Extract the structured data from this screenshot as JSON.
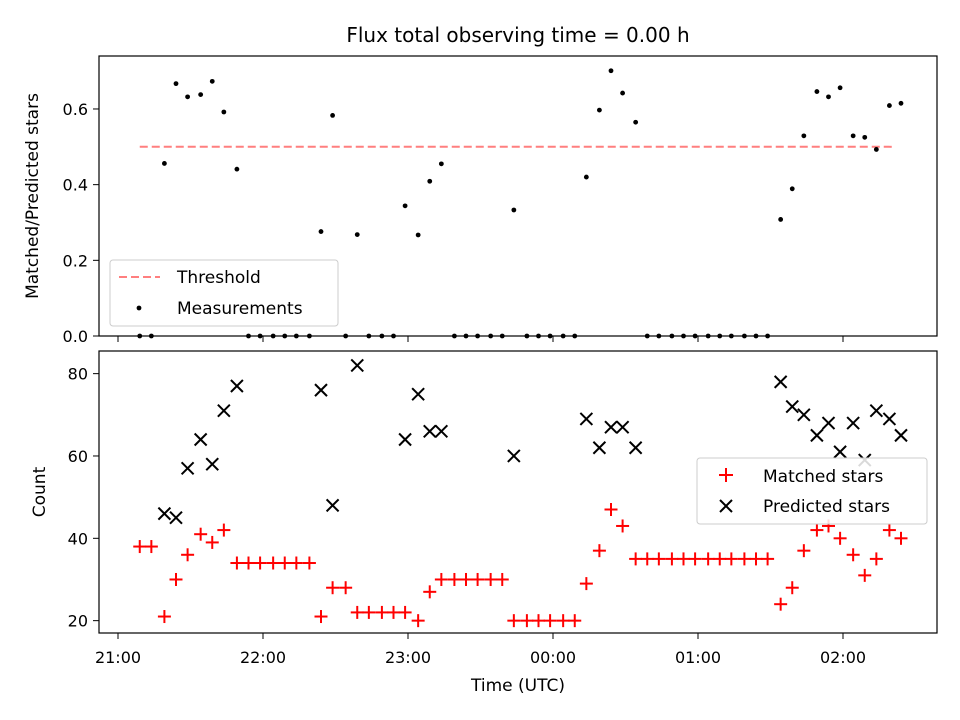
{
  "chart_data": [
    {
      "type": "scatter",
      "title": "Flux total observing time = 0.00 h",
      "ylabel": "Matched/Predicted stars",
      "ylim": [
        0,
        0.74
      ],
      "yticks": [
        0.0,
        0.2,
        0.4,
        0.6
      ],
      "ytick_labels": [
        "0.0",
        "0.2",
        "0.4",
        "0.6"
      ],
      "legend": {
        "placement": "lower-left",
        "entries": [
          "Threshold",
          "Measurements"
        ]
      },
      "threshold": {
        "name": "Threshold",
        "value": 0.5,
        "x_range": [
          21.15,
          2.35
        ],
        "color": "#ff7f7f"
      },
      "series": [
        {
          "name": "Measurements",
          "color": "#000000",
          "points": [
            [
              21.15,
              0.0
            ],
            [
              21.23,
              0.0
            ],
            [
              21.32,
              0.456
            ],
            [
              21.4,
              0.667
            ],
            [
              21.48,
              0.632
            ],
            [
              21.57,
              0.638
            ],
            [
              21.65,
              0.673
            ],
            [
              21.73,
              0.592
            ],
            [
              21.82,
              0.441
            ],
            [
              21.9,
              0.0
            ],
            [
              21.98,
              0.0
            ],
            [
              22.07,
              0.0
            ],
            [
              22.15,
              0.0
            ],
            [
              22.23,
              0.0
            ],
            [
              22.32,
              0.0
            ],
            [
              22.4,
              0.276
            ],
            [
              22.48,
              0.583
            ],
            [
              22.57,
              0.0
            ],
            [
              22.65,
              0.268
            ],
            [
              22.73,
              0.0
            ],
            [
              22.82,
              0.0
            ],
            [
              22.9,
              0.0
            ],
            [
              22.98,
              0.344
            ],
            [
              23.07,
              0.267
            ],
            [
              23.15,
              0.409
            ],
            [
              23.23,
              0.455
            ],
            [
              23.32,
              0.0
            ],
            [
              23.4,
              0.0
            ],
            [
              23.48,
              0.0
            ],
            [
              23.57,
              0.0
            ],
            [
              23.65,
              0.0
            ],
            [
              23.73,
              0.333
            ],
            [
              23.82,
              0.0
            ],
            [
              23.9,
              0.0
            ],
            [
              23.98,
              0.0
            ],
            [
              24.07,
              0.0
            ],
            [
              24.15,
              0.0
            ],
            [
              24.23,
              0.42
            ],
            [
              24.32,
              0.597
            ],
            [
              24.4,
              0.701
            ],
            [
              24.48,
              0.642
            ],
            [
              24.57,
              0.565
            ],
            [
              24.65,
              0.0
            ],
            [
              24.73,
              0.0
            ],
            [
              24.82,
              0.0
            ],
            [
              24.9,
              0.0
            ],
            [
              24.98,
              0.0
            ],
            [
              25.07,
              0.0
            ],
            [
              25.15,
              0.0
            ],
            [
              25.23,
              0.0
            ],
            [
              25.32,
              0.0
            ],
            [
              25.4,
              0.0
            ],
            [
              25.48,
              0.0
            ],
            [
              25.57,
              0.308
            ],
            [
              25.65,
              0.389
            ],
            [
              25.73,
              0.529
            ],
            [
              25.82,
              0.646
            ],
            [
              25.9,
              0.632
            ],
            [
              25.98,
              0.656
            ],
            [
              26.07,
              0.529
            ],
            [
              26.15,
              0.525
            ],
            [
              26.23,
              0.493
            ],
            [
              26.32,
              0.609
            ],
            [
              26.4,
              0.615
            ]
          ]
        }
      ]
    },
    {
      "type": "scatter",
      "xlabel": "Time (UTC)",
      "ylabel": "Count",
      "ylim": [
        17,
        85.5
      ],
      "yticks": [
        20,
        40,
        60,
        80
      ],
      "ytick_labels": [
        "20",
        "40",
        "60",
        "80"
      ],
      "xticks": [
        21,
        22,
        23,
        24,
        25,
        26
      ],
      "xtick_labels": [
        "21:00",
        "22:00",
        "23:00",
        "00:00",
        "01:00",
        "02:00"
      ],
      "legend": {
        "placement": "center-right",
        "entries": [
          "Matched stars",
          "Predicted stars"
        ]
      },
      "series": [
        {
          "name": "Matched stars",
          "marker": "plus",
          "color": "#ff0000",
          "points": [
            [
              21.15,
              38
            ],
            [
              21.23,
              38
            ],
            [
              21.32,
              21
            ],
            [
              21.4,
              30
            ],
            [
              21.48,
              36
            ],
            [
              21.57,
              41
            ],
            [
              21.65,
              39
            ],
            [
              21.73,
              42
            ],
            [
              21.82,
              34
            ],
            [
              21.9,
              34
            ],
            [
              21.98,
              34
            ],
            [
              22.07,
              34
            ],
            [
              22.15,
              34
            ],
            [
              22.23,
              34
            ],
            [
              22.32,
              34
            ],
            [
              22.4,
              21
            ],
            [
              22.48,
              28
            ],
            [
              22.57,
              28
            ],
            [
              22.65,
              22
            ],
            [
              22.73,
              22
            ],
            [
              22.82,
              22
            ],
            [
              22.9,
              22
            ],
            [
              22.98,
              22
            ],
            [
              23.07,
              20
            ],
            [
              23.15,
              27
            ],
            [
              23.23,
              30
            ],
            [
              23.32,
              30
            ],
            [
              23.4,
              30
            ],
            [
              23.48,
              30
            ],
            [
              23.57,
              30
            ],
            [
              23.65,
              30
            ],
            [
              23.73,
              20
            ],
            [
              23.82,
              20
            ],
            [
              23.9,
              20
            ],
            [
              23.98,
              20
            ],
            [
              24.07,
              20
            ],
            [
              24.15,
              20
            ],
            [
              24.23,
              29
            ],
            [
              24.32,
              37
            ],
            [
              24.4,
              47
            ],
            [
              24.48,
              43
            ],
            [
              24.57,
              35
            ],
            [
              24.65,
              35
            ],
            [
              24.73,
              35
            ],
            [
              24.82,
              35
            ],
            [
              24.9,
              35
            ],
            [
              24.98,
              35
            ],
            [
              25.07,
              35
            ],
            [
              25.15,
              35
            ],
            [
              25.23,
              35
            ],
            [
              25.32,
              35
            ],
            [
              25.4,
              35
            ],
            [
              25.48,
              35
            ],
            [
              25.57,
              24
            ],
            [
              25.65,
              28
            ],
            [
              25.73,
              37
            ],
            [
              25.82,
              42
            ],
            [
              25.9,
              43
            ],
            [
              25.98,
              40
            ],
            [
              26.07,
              36
            ],
            [
              26.15,
              31
            ],
            [
              26.23,
              35
            ],
            [
              26.32,
              42
            ],
            [
              26.4,
              40
            ]
          ]
        },
        {
          "name": "Predicted stars",
          "marker": "x",
          "color": "#000000",
          "points": [
            [
              21.32,
              46
            ],
            [
              21.4,
              45
            ],
            [
              21.48,
              57
            ],
            [
              21.57,
              64
            ],
            [
              21.65,
              58
            ],
            [
              21.73,
              71
            ],
            [
              21.82,
              77
            ],
            [
              22.4,
              76
            ],
            [
              22.48,
              48
            ],
            [
              22.65,
              82
            ],
            [
              22.98,
              64
            ],
            [
              23.07,
              75
            ],
            [
              23.15,
              66
            ],
            [
              23.23,
              66
            ],
            [
              23.73,
              60
            ],
            [
              24.23,
              69
            ],
            [
              24.32,
              62
            ],
            [
              24.4,
              67
            ],
            [
              24.48,
              67
            ],
            [
              24.57,
              62
            ],
            [
              25.57,
              78
            ],
            [
              25.65,
              72
            ],
            [
              25.73,
              70
            ],
            [
              25.82,
              65
            ],
            [
              25.9,
              68
            ],
            [
              25.98,
              61
            ],
            [
              26.07,
              68
            ],
            [
              26.15,
              59
            ],
            [
              26.23,
              71
            ],
            [
              26.32,
              69
            ],
            [
              26.4,
              65
            ]
          ]
        }
      ]
    }
  ]
}
